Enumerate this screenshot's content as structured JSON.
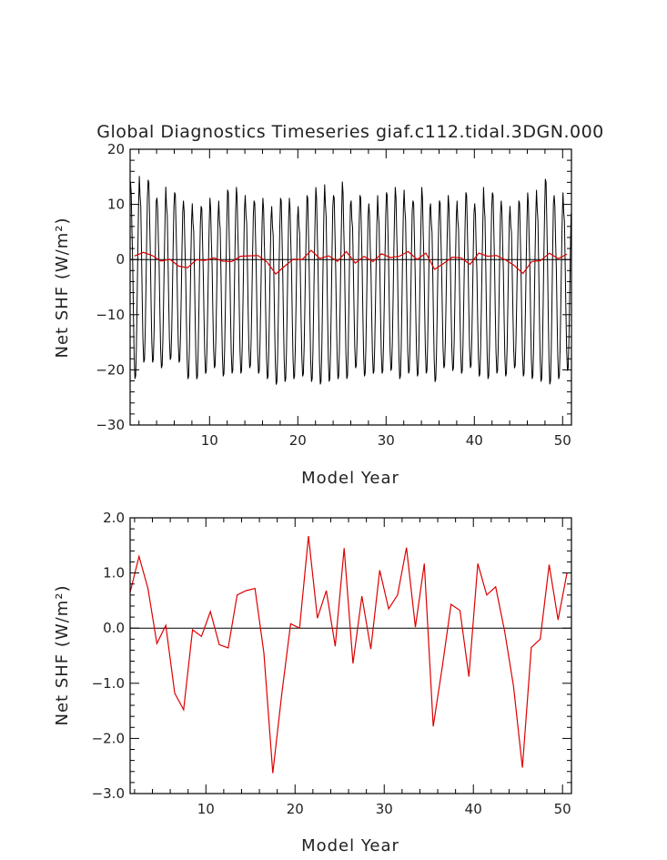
{
  "colors": {
    "monthly": "#000000",
    "annual": "#dd0000",
    "axes": "#000000",
    "zero_line": "#000000"
  },
  "chart_data": [
    {
      "type": "line",
      "title": "Global Diagnostics Timeseries giaf.c112.tidal.3DGN.000",
      "xlabel": "Model Year",
      "ylabel": "Net SHF (W/m²)",
      "xlim": [
        1,
        51
      ],
      "ylim": [
        -30,
        20
      ],
      "xticks": [
        10,
        20,
        30,
        40,
        50
      ],
      "yticks": [
        -30,
        -20,
        -10,
        0,
        10,
        20
      ],
      "ytick_labels": [
        "−30",
        "−20",
        "−10",
        "0",
        "10",
        "20"
      ],
      "zero_line": true,
      "series": [
        {
          "name": "monthly",
          "x_start": 1,
          "monthly_peaks": [
            14.5,
            15.5,
            14.8,
            11.5,
            13.5,
            12.5,
            11.0,
            10.5,
            10.0,
            11.5,
            11.0,
            13.0,
            13.5,
            12.0,
            11.0,
            11.5,
            10.0,
            11.5,
            11.5,
            10.0,
            12.0,
            13.5,
            14.0,
            12.0,
            14.5,
            11.0,
            12.0,
            10.5,
            12.0,
            12.5,
            13.5,
            13.0,
            11.0,
            13.5,
            10.5,
            11.0,
            12.0,
            11.0,
            12.5,
            10.5,
            13.5,
            12.5,
            11.0,
            10.0,
            11.0,
            12.5,
            13.0,
            15.0,
            12.0,
            12.5
          ],
          "monthly_troughs": [
            -22.0,
            -19.0,
            -19.0,
            -20.0,
            -18.5,
            -19.0,
            -22.0,
            -22.0,
            -21.0,
            -20.0,
            -21.5,
            -21.0,
            -21.0,
            -20.0,
            -21.0,
            -22.0,
            -23.0,
            -22.5,
            -22.0,
            -21.5,
            -22.5,
            -23.0,
            -22.5,
            -22.0,
            -22.0,
            -20.0,
            -21.5,
            -21.0,
            -21.0,
            -20.5,
            -22.0,
            -21.0,
            -21.5,
            -21.0,
            -22.5,
            -20.0,
            -20.5,
            -21.0,
            -20.0,
            -21.5,
            -22.0,
            -21.0,
            -21.5,
            -20.0,
            -21.5,
            -22.0,
            -22.5,
            -23.0,
            -22.0,
            -20.5
          ]
        },
        {
          "name": "annual",
          "x": [
            1.5,
            2.5,
            3.5,
            4.5,
            5.5,
            6.5,
            7.5,
            8.5,
            9.5,
            10.5,
            11.5,
            12.5,
            13.5,
            14.5,
            15.5,
            16.5,
            17.5,
            18.5,
            19.5,
            20.5,
            21.5,
            22.5,
            23.5,
            24.5,
            25.5,
            26.5,
            27.5,
            28.5,
            29.5,
            30.5,
            31.5,
            32.5,
            33.5,
            34.5,
            35.5,
            36.5,
            37.5,
            38.5,
            39.5,
            40.5,
            41.5,
            42.5,
            43.5,
            44.5,
            45.5,
            46.5,
            47.5,
            48.5,
            49.5,
            50.5
          ],
          "values": [
            0.65,
            1.3,
            0.72,
            -0.28,
            0.05,
            -1.18,
            -1.48,
            -0.03,
            -0.15,
            0.3,
            -0.3,
            -0.36,
            0.6,
            0.68,
            0.72,
            -0.45,
            -2.63,
            -1.2,
            0.08,
            0.0,
            1.67,
            0.18,
            0.68,
            -0.33,
            1.45,
            -0.64,
            0.58,
            -0.38,
            1.05,
            0.35,
            0.6,
            1.46,
            0.02,
            1.17,
            -1.78,
            -0.72,
            0.43,
            0.32,
            -0.88,
            1.17,
            0.6,
            0.75,
            -0.05,
            -1.05,
            -2.53,
            -0.35,
            -0.2,
            1.15,
            0.15,
            1.0
          ]
        }
      ]
    },
    {
      "type": "line",
      "title": "",
      "xlabel": "Model Year",
      "ylabel": "Net SHF (W/m²)",
      "xlim": [
        1.5,
        51
      ],
      "ylim": [
        -3.0,
        2.0
      ],
      "xticks": [
        10,
        20,
        30,
        40,
        50
      ],
      "yticks": [
        -3.0,
        -2.0,
        -1.0,
        0.0,
        1.0,
        2.0
      ],
      "ytick_labels": [
        "−3.0",
        "−2.0",
        "−1.0",
        "0.0",
        "1.0",
        "2.0"
      ],
      "zero_line": true,
      "series": [
        {
          "name": "annual",
          "x": [
            1.5,
            2.5,
            3.5,
            4.5,
            5.5,
            6.5,
            7.5,
            8.5,
            9.5,
            10.5,
            11.5,
            12.5,
            13.5,
            14.5,
            15.5,
            16.5,
            17.5,
            18.5,
            19.5,
            20.5,
            21.5,
            22.5,
            23.5,
            24.5,
            25.5,
            26.5,
            27.5,
            28.5,
            29.5,
            30.5,
            31.5,
            32.5,
            33.5,
            34.5,
            35.5,
            36.5,
            37.5,
            38.5,
            39.5,
            40.5,
            41.5,
            42.5,
            43.5,
            44.5,
            45.5,
            46.5,
            47.5,
            48.5,
            49.5,
            50.5
          ],
          "values": [
            0.65,
            1.3,
            0.72,
            -0.28,
            0.05,
            -1.18,
            -1.48,
            -0.03,
            -0.15,
            0.3,
            -0.3,
            -0.36,
            0.6,
            0.68,
            0.72,
            -0.45,
            -2.63,
            -1.2,
            0.08,
            0.0,
            1.67,
            0.18,
            0.68,
            -0.33,
            1.45,
            -0.64,
            0.58,
            -0.38,
            1.05,
            0.35,
            0.6,
            1.46,
            0.02,
            1.17,
            -1.78,
            -0.72,
            0.43,
            0.32,
            -0.88,
            1.17,
            0.6,
            0.75,
            -0.05,
            -1.05,
            -2.53,
            -0.35,
            -0.2,
            1.15,
            0.15,
            1.0
          ]
        }
      ]
    }
  ]
}
